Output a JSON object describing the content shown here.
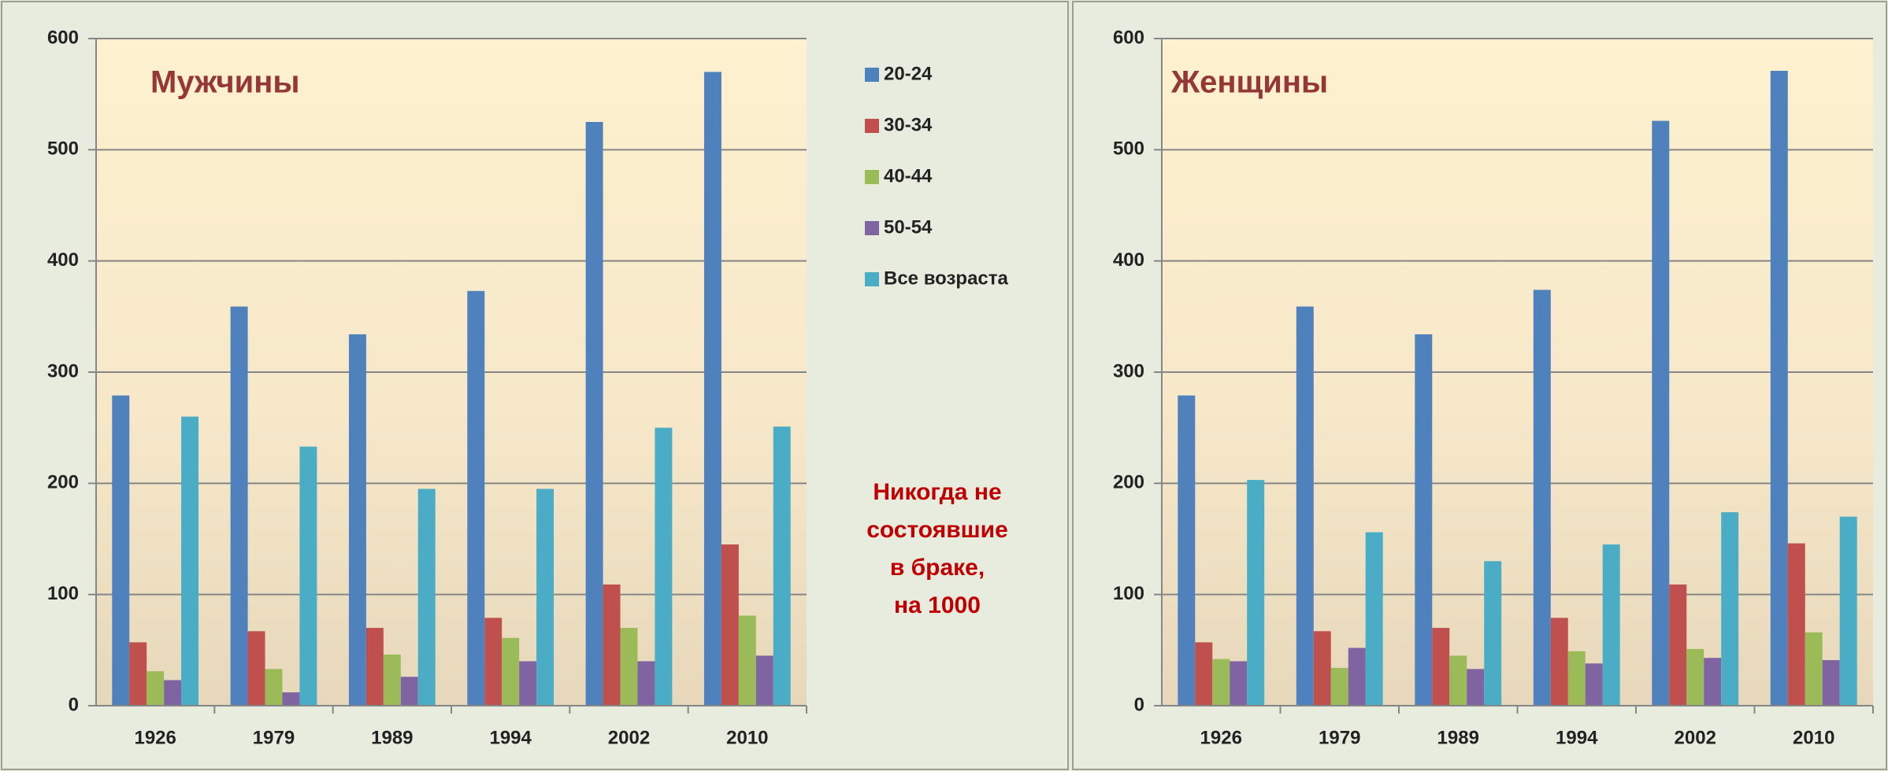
{
  "chart_data": [
    {
      "type": "bar",
      "title": "Мужчины",
      "categories": [
        "1926",
        "1979",
        "1989",
        "1994",
        "2002",
        "2010"
      ],
      "series": [
        {
          "name": "20-24",
          "color": "#4f81bd",
          "values": [
            279,
            359,
            334,
            373,
            525,
            570
          ]
        },
        {
          "name": "30-34",
          "color": "#c0504d",
          "values": [
            57,
            67,
            70,
            79,
            109,
            145
          ]
        },
        {
          "name": "40-44",
          "color": "#9bbb59",
          "values": [
            31,
            33,
            46,
            61,
            70,
            81
          ]
        },
        {
          "name": "50-54",
          "color": "#8064a2",
          "values": [
            23,
            12,
            26,
            40,
            40,
            45
          ]
        },
        {
          "name": "Все возраста",
          "color": "#4bacc6",
          "values": [
            260,
            233,
            195,
            195,
            250,
            251
          ]
        }
      ],
      "annotation": [
        "Никогда не",
        "состоявшие",
        "в браке,",
        "на 1000"
      ],
      "ylim": [
        0,
        600
      ],
      "yticks": [
        0,
        100,
        200,
        300,
        400,
        500,
        600
      ],
      "grid": true
    },
    {
      "type": "bar",
      "title": "Женщины",
      "categories": [
        "1926",
        "1979",
        "1989",
        "1994",
        "2002",
        "2010"
      ],
      "series": [
        {
          "color": "#4f81bd",
          "values": [
            279,
            359,
            334,
            374,
            526,
            571
          ]
        },
        {
          "color": "#c0504d",
          "values": [
            57,
            67,
            70,
            79,
            109,
            146
          ]
        },
        {
          "color": "#9bbb59",
          "values": [
            42,
            34,
            45,
            49,
            51,
            66
          ]
        },
        {
          "color": "#8064a2",
          "values": [
            40,
            52,
            33,
            38,
            43,
            41
          ]
        },
        {
          "color": "#4bacc6",
          "values": [
            203,
            156,
            130,
            145,
            174,
            170
          ]
        }
      ],
      "ylim": [
        0,
        600
      ],
      "yticks": [
        0,
        100,
        200,
        300,
        400,
        500,
        600
      ],
      "grid": true
    }
  ]
}
